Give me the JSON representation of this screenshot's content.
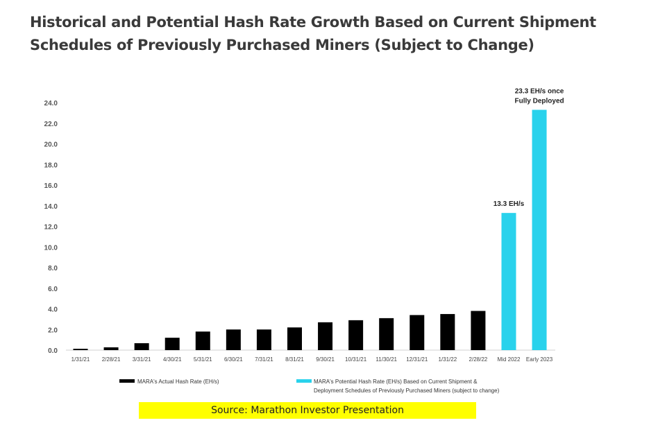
{
  "title": "Historical and Potential Hash Rate Growth Based on Current Shipment Schedules of Previously Purchased Miners (Subject to Change)",
  "source": "Source: Marathon Investor Presentation",
  "chart_data": {
    "type": "bar",
    "categories": [
      "1/31/21",
      "2/28/21",
      "3/31/21",
      "4/30/21",
      "5/31/21",
      "6/30/21",
      "7/31/21",
      "8/31/21",
      "9/30/21",
      "10/31/21",
      "11/30/21",
      "12/31/21",
      "1/31/22",
      "2/28/22",
      "Mid 2022",
      "Early 2023"
    ],
    "series": [
      {
        "name": "MARA's Actual Hash Rate (EH/s)",
        "color": "#000000",
        "values": [
          0.13,
          0.27,
          0.67,
          1.2,
          1.8,
          2.0,
          2.0,
          2.2,
          2.7,
          2.9,
          3.1,
          3.4,
          3.5,
          3.8,
          null,
          null
        ]
      },
      {
        "name": "MARA's Potential Hash Rate (EH/s) Based on Current Shipment & Deployment Schedules of Previously Purchased Miners (subject to change)",
        "color": "#29d2ec",
        "values": [
          null,
          null,
          null,
          null,
          null,
          null,
          null,
          null,
          null,
          null,
          null,
          null,
          null,
          null,
          13.3,
          23.3
        ]
      }
    ],
    "yticks": [
      "0.0",
      "2.0",
      "4.0",
      "6.0",
      "8.0",
      "10.0",
      "12.0",
      "14.0",
      "16.0",
      "18.0",
      "20.0",
      "22.0",
      "24.0"
    ],
    "ylim": [
      0,
      24
    ],
    "grid": false,
    "legend": "bottom",
    "annotations": [
      {
        "category": "Mid 2022",
        "lines": [
          "13.3 EH/s"
        ]
      },
      {
        "category": "Early 2023",
        "lines": [
          "23.3 EH/s once",
          "Fully Deployed"
        ]
      }
    ]
  }
}
